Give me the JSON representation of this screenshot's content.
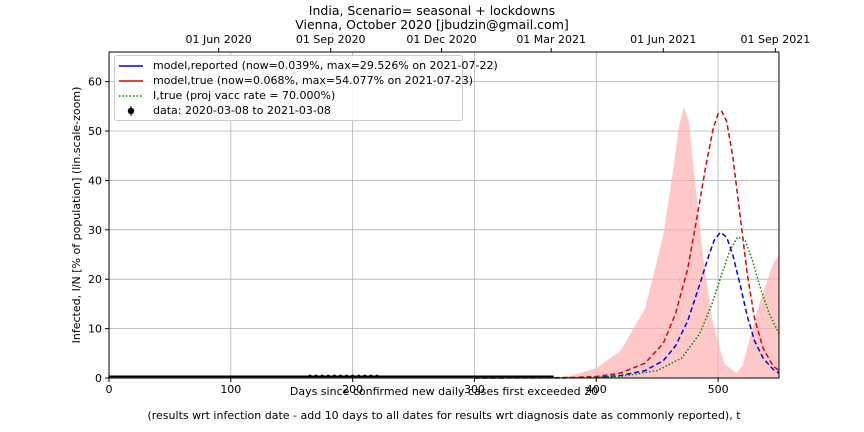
{
  "title_line1": "India, Scenario= seasonal + lockdowns",
  "title_line2": "Vienna, October 2020 [jbudzin@gmail.com]",
  "chart_data": {
    "type": "line",
    "xlabel": "Days since confirmed new daily cases first exceeded 20",
    "xlabel_line2": "(results wrt infection date - add 10 days to all dates for results wrt diagnosis date as commonly reported), t",
    "ylabel": "Infected, I/N [% of population] (lin.scale-zoom)",
    "xlim": [
      0,
      550
    ],
    "ylim": [
      0,
      66
    ],
    "x_ticks": [
      0,
      100,
      200,
      300,
      400,
      500
    ],
    "y_ticks": [
      0,
      10,
      20,
      30,
      40,
      50,
      60
    ],
    "top_axis_ticks": [
      {
        "day": 90,
        "label": "01 Jun 2020"
      },
      {
        "day": 182,
        "label": "01 Sep 2020"
      },
      {
        "day": 273,
        "label": "01 Dec 2020"
      },
      {
        "day": 363,
        "label": "01 Mar 2021"
      },
      {
        "day": 455,
        "label": "01 Jun 2021"
      },
      {
        "day": 547,
        "label": "01 Sep 2021"
      }
    ],
    "grid": true,
    "legend_position": "top-left",
    "colors": {
      "reported": "#0000ee",
      "true": "#e00000",
      "vacc": "#008800",
      "data": "#000000",
      "band": "#ffb0b0"
    },
    "series": [
      {
        "name": "model,reported (now=0.039%, max=29.526% on 2021-07-22)",
        "style": "dashed",
        "color": "#0000ee",
        "x": [
          300,
          340,
          380,
          400,
          420,
          440,
          455,
          465,
          475,
          485,
          492,
          497,
          502,
          507,
          512,
          518,
          524,
          530,
          537,
          545,
          550
        ],
        "y": [
          0.0,
          0.02,
          0.05,
          0.15,
          0.5,
          1.5,
          3.5,
          6.5,
          11.5,
          19.0,
          24.5,
          28.0,
          29.5,
          28.5,
          25.0,
          19.0,
          12.5,
          7.5,
          4.0,
          1.8,
          1.0
        ]
      },
      {
        "name": "model,true (now=0.068%, max=54.077% on 2021-07-23)",
        "style": "dashed",
        "color": "#e00000",
        "x": [
          300,
          340,
          380,
          400,
          420,
          440,
          455,
          465,
          475,
          483,
          490,
          496,
          500,
          503,
          507,
          512,
          518,
          524,
          530,
          537,
          545,
          550
        ],
        "y": [
          0.0,
          0.03,
          0.1,
          0.3,
          1.0,
          3.0,
          7.0,
          13.0,
          22.0,
          33.0,
          43.0,
          50.5,
          53.5,
          54.0,
          52.0,
          45.0,
          33.0,
          21.0,
          12.0,
          6.0,
          2.5,
          1.5
        ]
      },
      {
        "name": "I,true (proj vacc rate = 70.000%)",
        "style": "dotted",
        "color": "#008800",
        "x": [
          300,
          380,
          420,
          450,
          470,
          485,
          495,
          503,
          510,
          516,
          522,
          528,
          535,
          542,
          550
        ],
        "y": [
          0.0,
          0.05,
          0.3,
          1.5,
          4.0,
          9.0,
          15.0,
          21.0,
          26.0,
          28.5,
          28.0,
          24.0,
          18.0,
          13.0,
          9.0
        ]
      }
    ],
    "data_points": {
      "name": "data: 2020-03-08 to 2021-03-08",
      "x_range": [
        0,
        365
      ],
      "y_approx": 0.2
    },
    "band": {
      "x": [
        365,
        380,
        400,
        420,
        440,
        455,
        463,
        468,
        472,
        476,
        481,
        488,
        495,
        505,
        515,
        520,
        525,
        535,
        545,
        550
      ],
      "y_upper": [
        0.0,
        0.5,
        2.0,
        5.5,
        14.0,
        29.0,
        42.0,
        51.0,
        55.0,
        52.0,
        40.0,
        24.0,
        12.0,
        3.0,
        1.0,
        2.5,
        7.0,
        16.0,
        23.0,
        25.0
      ]
    }
  }
}
